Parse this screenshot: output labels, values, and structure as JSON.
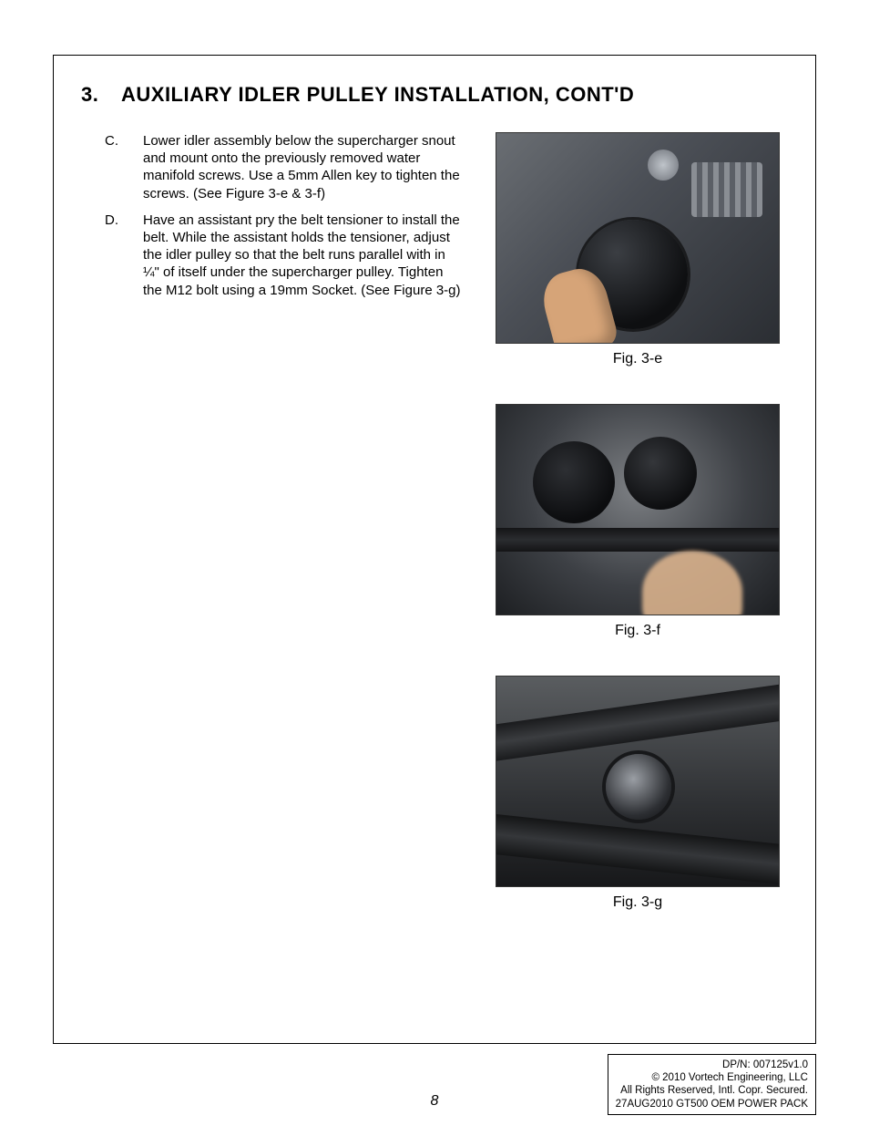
{
  "heading": {
    "number": "3.",
    "title": "AUXILIARY IDLER PULLEY INSTALLATION, CONT'D"
  },
  "steps": [
    {
      "letter": "C.",
      "text": "Lower idler assembly below the supercharger snout and mount onto the previously removed water manifold screws. Use a 5mm Allen key to tighten the screws. (See Figure 3-e & 3-f)"
    },
    {
      "letter": "D.",
      "text": "Have an assistant pry the belt tensioner to install the belt. While the assistant holds the tensioner, adjust the idler pulley so that the belt runs parallel with in ¼\" of itself under the supercharger pulley. Tighten the M12 bolt using a 19mm Socket. (See Figure 3-g)"
    }
  ],
  "figures": [
    {
      "caption": "Fig. 3-e"
    },
    {
      "caption": "Fig. 3-f"
    },
    {
      "caption": "Fig. 3-g"
    }
  ],
  "page_number": "8",
  "footer": {
    "line1": "DP/N: 007125v1.0",
    "line2": "© 2010 Vortech Engineering, LLC",
    "line3": "All Rights Reserved, Intl. Copr. Secured.",
    "line4": "27AUG2010 GT500 OEM POWER PACK"
  }
}
